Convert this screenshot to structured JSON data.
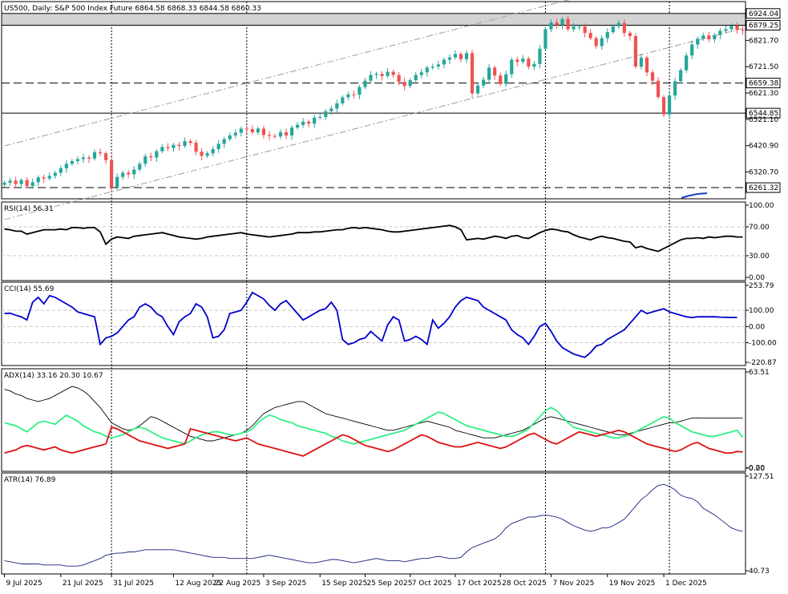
{
  "colors": {
    "bull": "#26a69a",
    "bear": "#ef5350",
    "rsi": "#000000",
    "cci": "#0000cc",
    "adx_main": "#000000",
    "adx_plus": "#33ee88",
    "adx_minus": "#dd1111",
    "atr": "#1a237e",
    "band_fill": "#d3d3d3",
    "grid": "#c8c8c8",
    "channel": "#9e9e9e",
    "level_line": "#000000"
  },
  "chart_data": [
    {
      "type": "candlestick",
      "title": "US500, Daily:  S&P 500  Index Future  6864.58 6868.33 6844.58 6860.33",
      "ohlc_header": [
        6864.58,
        6868.33,
        6844.58,
        6860.33
      ],
      "ylim": [
        6231.0,
        6957.0
      ],
      "y_ticks": [
        "6924.04",
        "6879.25",
        "6821.70",
        "6721.50",
        "6659.38",
        "6621.30",
        "6544.85",
        "6521.10",
        "6420.90",
        "6320.70",
        "6261.32"
      ],
      "highlighted_levels": [
        "6924.04",
        "6879.25",
        "6659.38",
        "6544.85",
        "6261.32"
      ],
      "levels": [
        {
          "value": 6659.38,
          "style": "dashed"
        },
        {
          "value": 6544.85,
          "style": "solid"
        },
        {
          "value": 6261.32,
          "style": "dashed"
        }
      ],
      "zone": [
        6879.25,
        6924.04
      ],
      "channel": {
        "from": [
          "2025-07-09",
          6420.0
        ],
        "to_slope_per_bar": 5.55
      },
      "x_labels": [
        "9 Jul 2025",
        "21 Jul 2025",
        "31 Jul 2025",
        "12 Aug 2025",
        "22 Aug 2025",
        "3 Sep 2025",
        "15 Sep 2025",
        "25 Sep 2025",
        "7 Oct 2025",
        "17 Oct 2025",
        "28 Oct 2025",
        "7 Nov 2025",
        "19 Nov 2025",
        "1 Dec 2025"
      ],
      "vertical_markers": [
        "31 Jul 2025",
        "3 Sep 2025",
        "28 Oct 2025",
        "1 Dec 2025"
      ],
      "close": [
        6280,
        6288,
        6275,
        6290,
        6268,
        6282,
        6300,
        6296,
        6306,
        6318,
        6335,
        6352,
        6362,
        6370,
        6376,
        6372,
        6396,
        6392,
        6366,
        6262,
        6302,
        6318,
        6312,
        6330,
        6352,
        6380,
        6376,
        6400,
        6416,
        6412,
        6424,
        6420,
        6438,
        6432,
        6398,
        6382,
        6392,
        6408,
        6428,
        6446,
        6460,
        6470,
        6486,
        6484,
        6472,
        6486,
        6462,
        6458,
        6456,
        6472,
        6460,
        6490,
        6500,
        6512,
        6505,
        6528,
        6530,
        6552,
        6562,
        6582,
        6605,
        6616,
        6615,
        6644,
        6668,
        6690,
        6694,
        6686,
        6702,
        6690,
        6664,
        6648,
        6670,
        6690,
        6700,
        6718,
        6722,
        6730,
        6748,
        6757,
        6770,
        6750,
        6773,
        6620,
        6650,
        6672,
        6718,
        6688,
        6656,
        6693,
        6748,
        6740,
        6752,
        6722,
        6732,
        6790,
        6864,
        6890,
        6880,
        6903,
        6864,
        6875,
        6875,
        6850,
        6830,
        6800,
        6830,
        6853,
        6875,
        6888,
        6850,
        6838,
        6722,
        6756,
        6700,
        6668,
        6606,
        6540,
        6612,
        6666,
        6708,
        6764,
        6806,
        6828,
        6840,
        6826,
        6842,
        6858,
        6864,
        6878,
        6862,
        6860
      ],
      "ohlc_note": "series derived from close: open = previous close"
    },
    {
      "type": "line",
      "title": "RSI(14) 56.31",
      "ylim": [
        0,
        100
      ],
      "y_ticks": [
        "100.00",
        "70.00",
        "30.00",
        "0.00"
      ],
      "series": [
        {
          "name": "RSI(14)",
          "values": [
            67,
            66,
            64,
            64,
            60,
            62,
            64,
            66,
            66,
            66,
            67,
            66,
            69,
            69,
            68,
            69,
            69,
            63,
            46,
            53,
            56,
            55,
            54,
            57,
            58,
            59,
            60,
            61,
            62,
            60,
            58,
            56,
            55,
            54,
            53,
            54,
            56,
            57,
            58,
            59,
            60,
            61,
            62,
            60,
            59,
            58,
            57,
            56,
            57,
            58,
            59,
            60,
            62,
            62,
            62,
            63,
            63,
            64,
            65,
            66,
            66,
            68,
            69,
            68,
            69,
            68,
            67,
            66,
            64,
            63,
            63,
            64,
            65,
            66,
            67,
            68,
            69,
            70,
            71,
            72,
            70,
            66,
            52,
            53,
            54,
            53,
            55,
            57,
            56,
            54,
            57,
            58,
            55,
            54,
            58,
            62,
            65,
            67,
            66,
            64,
            63,
            59,
            56,
            54,
            52,
            55,
            57,
            55,
            54,
            52,
            50,
            49,
            41,
            43,
            40,
            38,
            36,
            40,
            44,
            48,
            52,
            54,
            54,
            55,
            54,
            56,
            55,
            56,
            57,
            57,
            56,
            56
          ]
        }
      ]
    },
    {
      "type": "line",
      "title": "CCI(14) 55.69",
      "ylim": [
        -220.87,
        253.79
      ],
      "y_ticks": [
        "253.79",
        "100.00",
        "0.00",
        "-100.00",
        "-220.87"
      ],
      "series": [
        {
          "name": "CCI(14)",
          "values": [
            80,
            82,
            70,
            60,
            40,
            150,
            180,
            140,
            190,
            180,
            160,
            140,
            120,
            90,
            80,
            70,
            60,
            -110,
            -70,
            -60,
            -40,
            0,
            40,
            60,
            120,
            140,
            120,
            80,
            60,
            0,
            -50,
            30,
            60,
            80,
            140,
            120,
            60,
            -70,
            -60,
            -20,
            80,
            90,
            100,
            150,
            210,
            190,
            170,
            130,
            100,
            140,
            160,
            120,
            80,
            40,
            60,
            80,
            100,
            110,
            150,
            100,
            -80,
            -110,
            -100,
            -80,
            -70,
            -30,
            -60,
            -90,
            10,
            60,
            40,
            -90,
            -80,
            -60,
            -80,
            -110,
            40,
            -10,
            20,
            60,
            120,
            160,
            180,
            170,
            160,
            120,
            100,
            80,
            60,
            40,
            -20,
            -50,
            -70,
            -110,
            -60,
            0,
            20,
            -30,
            -90,
            -130,
            -150,
            -170,
            -180,
            -190,
            -160,
            -120,
            -110,
            -80,
            -60,
            -40,
            -20,
            20,
            60,
            100,
            80,
            90,
            100,
            110,
            90,
            80,
            70,
            60,
            55.69,
            60,
            60,
            60,
            60,
            58,
            57,
            56,
            56
          ]
        }
      ]
    },
    {
      "type": "line",
      "title": "ADX(14) 33.16 20.30 10.67",
      "ylim": [
        0.0,
        63.51
      ],
      "y_ticks": [
        "63.51",
        "0.20",
        "0.00"
      ],
      "series": [
        {
          "name": "ADX(14)",
          "values": [
            52,
            51,
            49,
            48,
            46,
            45,
            44,
            45,
            46,
            48,
            50,
            52,
            54,
            53,
            51,
            48,
            44,
            40,
            35,
            30,
            28,
            26,
            25,
            26,
            28,
            31,
            34,
            33,
            31,
            29,
            27,
            25,
            23,
            21,
            20,
            19,
            18,
            18,
            19,
            20,
            21,
            22,
            23,
            25,
            28,
            32,
            36,
            38,
            40,
            41,
            42,
            43,
            44,
            44,
            42,
            40,
            38,
            36,
            35,
            34,
            33,
            32,
            31,
            30,
            29,
            28,
            27,
            26,
            25,
            25,
            26,
            27,
            28,
            29,
            30,
            31,
            30,
            29,
            28,
            27,
            25,
            24,
            23,
            22,
            21,
            20,
            20,
            20,
            21,
            22,
            23,
            24,
            25,
            27,
            29,
            31,
            33,
            34,
            33,
            32,
            31,
            30,
            29,
            28,
            27,
            26,
            25,
            24,
            23,
            22,
            22,
            23,
            24,
            25,
            26,
            27,
            28,
            29,
            30,
            30,
            31,
            32,
            33,
            33.16,
            33,
            33,
            33,
            33,
            33,
            33,
            33,
            33
          ]
        },
        {
          "name": "+DI",
          "values": [
            30,
            29,
            28,
            26,
            24,
            27,
            30,
            31,
            30,
            29,
            32,
            35,
            33,
            31,
            28,
            26,
            24,
            23,
            21,
            20,
            21,
            22,
            24,
            26,
            27,
            26,
            24,
            22,
            20,
            19,
            18,
            17,
            16,
            18,
            20,
            22,
            23,
            24,
            24,
            23,
            22,
            22,
            23,
            24,
            26,
            30,
            33,
            35,
            34,
            32,
            31,
            30,
            28,
            27,
            26,
            25,
            24,
            23,
            21,
            20,
            18,
            17,
            16,
            17,
            18,
            19,
            20,
            21,
            22,
            23,
            24,
            25,
            27,
            29,
            31,
            33,
            35,
            37,
            36,
            34,
            32,
            30,
            28,
            27,
            26,
            25,
            24,
            23,
            22,
            21,
            21,
            22,
            24,
            26,
            30,
            34,
            38,
            40,
            38,
            34,
            30,
            27,
            26,
            25,
            24,
            23,
            22,
            21,
            20,
            20,
            21,
            22,
            24,
            26,
            28,
            30,
            32,
            34,
            33,
            30,
            28,
            26,
            24,
            23,
            22,
            21,
            21,
            22,
            23,
            24,
            25,
            20.3
          ]
        },
        {
          "name": "-DI",
          "values": [
            10,
            11,
            12,
            14,
            15,
            14,
            13,
            12,
            13,
            14,
            12,
            11,
            10,
            11,
            12,
            13,
            14,
            15,
            16,
            27,
            26,
            24,
            22,
            20,
            18,
            17,
            16,
            15,
            14,
            13,
            14,
            15,
            16,
            26,
            25,
            24,
            23,
            22,
            21,
            20,
            19,
            18,
            19,
            20,
            18,
            16,
            15,
            14,
            13,
            12,
            11,
            10,
            9,
            8,
            10,
            12,
            14,
            16,
            18,
            20,
            22,
            21,
            19,
            17,
            15,
            14,
            13,
            12,
            11,
            12,
            14,
            16,
            18,
            20,
            22,
            21,
            19,
            17,
            16,
            15,
            14,
            14,
            15,
            16,
            17,
            16,
            15,
            14,
            13,
            14,
            16,
            18,
            20,
            22,
            23,
            21,
            19,
            17,
            16,
            18,
            20,
            22,
            24,
            23,
            22,
            21,
            22,
            23,
            24,
            25,
            24,
            22,
            20,
            18,
            16,
            15,
            14,
            13,
            12,
            11,
            12,
            14,
            16,
            17,
            15,
            13,
            12,
            11,
            10,
            10,
            11,
            10.67
          ]
        }
      ]
    },
    {
      "type": "line",
      "title": "ATR(14) 76.89",
      "ylim": [
        40.73,
        127.51
      ],
      "y_ticks": [
        "127.51",
        "40.73"
      ],
      "series": [
        {
          "name": "ATR(14)",
          "values": [
            50,
            49,
            48,
            47,
            47,
            47,
            47,
            46,
            46,
            46,
            46,
            45,
            45,
            45,
            46,
            48,
            50,
            52,
            55,
            56,
            57,
            57,
            58,
            58,
            59,
            60,
            60,
            60,
            60,
            60,
            60,
            59,
            58,
            57,
            56,
            55,
            54,
            53,
            53,
            53,
            52,
            52,
            52,
            52,
            52,
            53,
            54,
            55,
            54,
            53,
            52,
            51,
            50,
            49,
            48,
            48,
            49,
            50,
            51,
            51,
            50,
            49,
            48,
            49,
            50,
            51,
            52,
            51,
            50,
            50,
            50,
            49,
            50,
            51,
            52,
            52,
            53,
            54,
            53,
            52,
            52,
            53,
            58,
            62,
            64,
            66,
            68,
            70,
            74,
            80,
            84,
            86,
            88,
            90,
            90,
            91,
            92,
            91,
            90,
            88,
            85,
            82,
            80,
            78,
            77,
            78,
            80,
            80,
            82,
            85,
            88,
            94,
            100,
            106,
            110,
            115,
            119,
            120,
            118,
            115,
            110,
            108,
            107,
            104,
            98,
            95,
            92,
            88,
            84,
            80,
            78,
            76.89
          ]
        }
      ]
    }
  ]
}
